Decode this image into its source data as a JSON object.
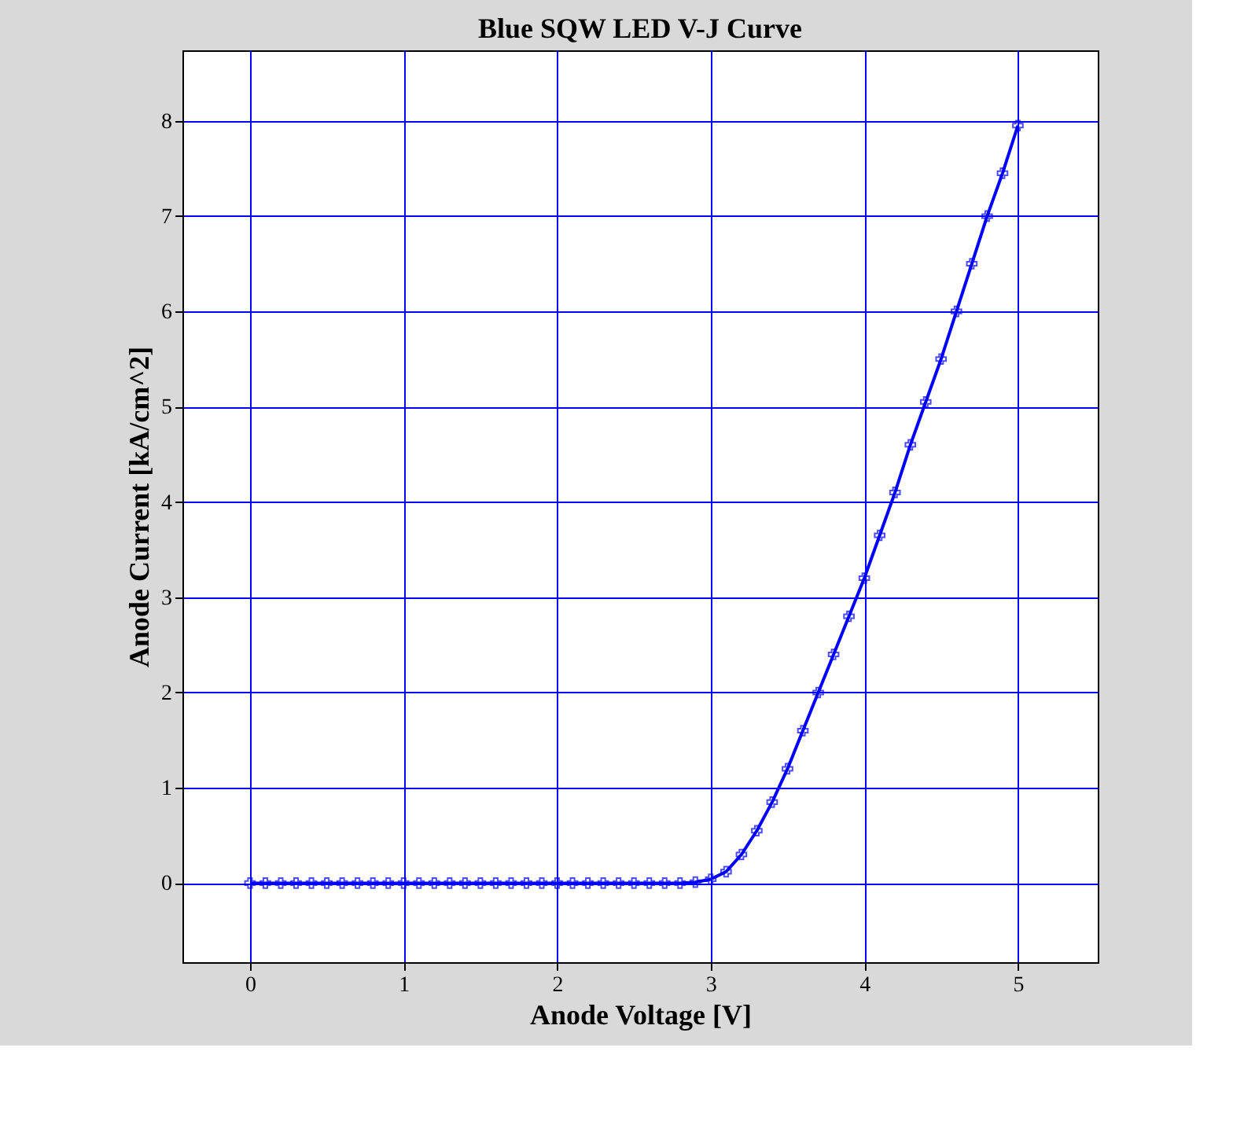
{
  "chart_data": {
    "type": "line",
    "subtitle": "Blue SQW LED V-J Curve",
    "xlabel": "Anode Voltage [V]",
    "ylabel": "Anode Current [kA/cm^2]",
    "x": [
      0,
      0.1,
      0.2,
      0.3,
      0.4,
      0.5,
      0.6,
      0.7,
      0.8,
      0.9,
      1.0,
      1.1,
      1.2,
      1.3,
      1.4,
      1.5,
      1.6,
      1.7,
      1.8,
      1.9,
      2.0,
      2.1,
      2.2,
      2.3,
      2.4,
      2.5,
      2.6,
      2.7,
      2.8,
      2.9,
      3.0,
      3.1,
      3.2,
      3.3,
      3.4,
      3.5,
      3.6,
      3.7,
      3.8,
      3.9,
      4.0,
      4.1,
      4.2,
      4.3,
      4.4,
      4.5,
      4.6,
      4.7,
      4.8,
      4.9,
      5.0
    ],
    "series": [
      {
        "color": "#0000ff",
        "values": [
          0,
          0,
          0,
          0,
          0,
          0,
          0,
          0,
          0,
          0,
          0,
          0,
          0,
          0,
          0,
          0,
          0,
          0,
          0,
          0,
          0,
          0,
          0,
          0,
          0,
          0,
          0,
          0,
          0,
          0.01,
          0.04,
          0.12,
          0.3,
          0.55,
          0.85,
          1.2,
          1.6,
          2.0,
          2.4,
          2.8,
          3.2,
          3.65,
          4.1,
          4.6,
          5.05,
          5.5,
          6.0,
          6.5,
          7.0,
          7.45,
          7.95
        ]
      }
    ],
    "xlim": [
      -0.44,
      5.52
    ],
    "ylim": [
      -0.83,
      8.74
    ],
    "xticks": [
      0,
      1,
      2,
      3,
      4,
      5
    ],
    "yticks": [
      0,
      1,
      2,
      3,
      4,
      5,
      6,
      7,
      8
    ],
    "grid": true,
    "marker": "cross",
    "line_style": "solid"
  }
}
